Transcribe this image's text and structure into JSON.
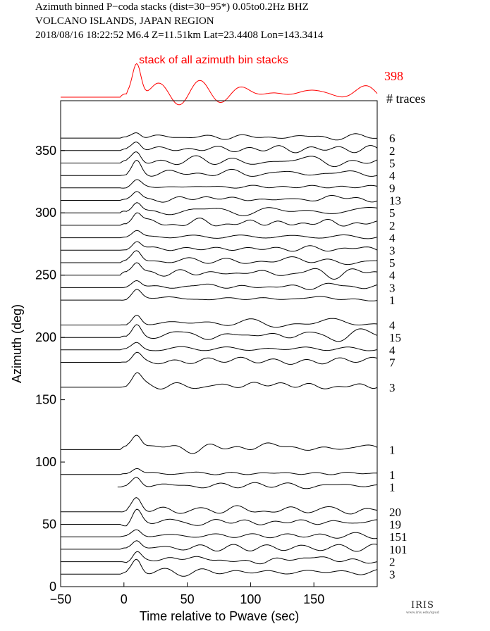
{
  "header": {
    "line1": "Azimuth binned P−coda stacks (dist=30−95*)  0.05to0.2Hz  BHZ",
    "line2": "VOLCANO ISLANDS, JAPAN REGION",
    "line3": "2018/08/16   18:22:52   M6.4   Z=11.51km Lat=23.4408 Lon=143.3414"
  },
  "logo": {
    "word": "IRIS",
    "sub": "www.iris.edu/spud"
  },
  "chart_data": {
    "type": "line",
    "title": "stack of all azimuth bin stacks",
    "stack_count": "398",
    "count_header": "# traces",
    "xlabel": "Time relative to Pwave (sec)",
    "ylabel": "Azimuth (deg)",
    "xlim": [
      -50,
      200
    ],
    "ylim": [
      0,
      390
    ],
    "xticks": [
      -50,
      0,
      50,
      100,
      150
    ],
    "yticks": [
      0,
      50,
      100,
      150,
      200,
      250,
      300,
      350
    ],
    "stack_color": "#ff0000",
    "trace_color": "#000000",
    "series": [
      {
        "azimuth": 360,
        "traces": "6",
        "start": -50
      },
      {
        "azimuth": 350,
        "traces": "2",
        "start": -50
      },
      {
        "azimuth": 340,
        "traces": "5",
        "start": -50
      },
      {
        "azimuth": 330,
        "traces": "4",
        "start": -50
      },
      {
        "azimuth": 320,
        "traces": "9",
        "start": -50
      },
      {
        "azimuth": 310,
        "traces": "13",
        "start": -50
      },
      {
        "azimuth": 300,
        "traces": "5",
        "start": -50
      },
      {
        "azimuth": 290,
        "traces": "2",
        "start": -50
      },
      {
        "azimuth": 280,
        "traces": "4",
        "start": -50
      },
      {
        "azimuth": 270,
        "traces": "3",
        "start": -50
      },
      {
        "azimuth": 260,
        "traces": "5",
        "start": -50
      },
      {
        "azimuth": 250,
        "traces": "4",
        "start": -50
      },
      {
        "azimuth": 240,
        "traces": "3",
        "start": -50
      },
      {
        "azimuth": 230,
        "traces": "1",
        "start": -50
      },
      {
        "azimuth": 210,
        "traces": "4",
        "start": -50
      },
      {
        "azimuth": 200,
        "traces": "15",
        "start": -50
      },
      {
        "azimuth": 190,
        "traces": "4",
        "start": -50
      },
      {
        "azimuth": 180,
        "traces": "7",
        "start": -50
      },
      {
        "azimuth": 160,
        "traces": "3",
        "start": -50
      },
      {
        "azimuth": 110,
        "traces": "1",
        "start": -50
      },
      {
        "azimuth": 90,
        "traces": "1",
        "start": -50
      },
      {
        "azimuth": 80,
        "traces": "1",
        "start": -5
      },
      {
        "azimuth": 60,
        "traces": "20",
        "start": -50
      },
      {
        "azimuth": 50,
        "traces": "19",
        "start": -50
      },
      {
        "azimuth": 40,
        "traces": "151",
        "start": -50
      },
      {
        "azimuth": 30,
        "traces": "101",
        "start": -50
      },
      {
        "azimuth": 20,
        "traces": "2",
        "start": -50
      },
      {
        "azimuth": 10,
        "traces": "3",
        "start": -50
      }
    ]
  }
}
